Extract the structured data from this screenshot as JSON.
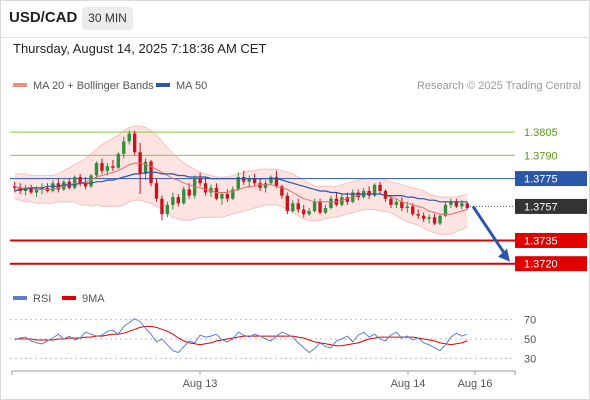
{
  "header": {
    "symbol": "USD/CAD",
    "timeframe": "30 MIN"
  },
  "datetime": "Thursday, August 14, 2025 7:18:36 AM CET",
  "legend": {
    "bollinger": {
      "label": "MA 20 + Bollinger Bands",
      "color": "#f28b82"
    },
    "ma50": {
      "label": "MA 50",
      "color": "#2b57a8"
    }
  },
  "credit": "Research © 2025 Trading Central",
  "rsi_legend": {
    "rsi": {
      "label": "RSI",
      "color": "#5b7fd0"
    },
    "ma": {
      "label": "9MA",
      "color": "#e00000"
    }
  },
  "colors": {
    "up": "#2f8f3a",
    "down": "#c8141e",
    "blue": "#2b57a8",
    "red": "#e00000",
    "green": "#8cc63f",
    "dark": "#333333"
  },
  "chart_data": {
    "type": "candlestick",
    "price_range": [
      1.3703,
      1.3829
    ],
    "levels": [
      {
        "value": "1.3805",
        "style": "green-line"
      },
      {
        "value": "1.3790",
        "style": "green-line"
      },
      {
        "value": "1.3775",
        "style": "blue-line"
      },
      {
        "value": "1.3757",
        "style": "last-price"
      },
      {
        "value": "1.3735",
        "style": "red-line"
      },
      {
        "value": "1.3720",
        "style": "red-line"
      }
    ],
    "projection": {
      "from": 1.3757,
      "to": 1.372
    },
    "x_labels": [
      "Aug 13",
      "Aug 14",
      "Aug 16"
    ],
    "candles": [
      [
        1.377,
        1.3773,
        1.3766,
        1.3769
      ],
      [
        1.3769,
        1.3772,
        1.3765,
        1.3767
      ],
      [
        1.3767,
        1.3771,
        1.3764,
        1.3769
      ],
      [
        1.3769,
        1.3771,
        1.3765,
        1.3766
      ],
      [
        1.3766,
        1.377,
        1.3763,
        1.3768
      ],
      [
        1.3768,
        1.3772,
        1.3765,
        1.3769
      ],
      [
        1.3769,
        1.3772,
        1.3766,
        1.3767
      ],
      [
        1.3767,
        1.3774,
        1.3766,
        1.3772
      ],
      [
        1.3772,
        1.3775,
        1.3766,
        1.3768
      ],
      [
        1.3768,
        1.3774,
        1.3767,
        1.3773
      ],
      [
        1.3773,
        1.3775,
        1.3768,
        1.3769
      ],
      [
        1.3769,
        1.3777,
        1.3768,
        1.3776
      ],
      [
        1.3776,
        1.3778,
        1.377,
        1.3772
      ],
      [
        1.3772,
        1.3776,
        1.3768,
        1.377
      ],
      [
        1.377,
        1.3778,
        1.3769,
        1.3777
      ],
      [
        1.3777,
        1.3786,
        1.3775,
        1.3785
      ],
      [
        1.3785,
        1.3788,
        1.3778,
        1.378
      ],
      [
        1.378,
        1.3785,
        1.3777,
        1.3783
      ],
      [
        1.3783,
        1.3787,
        1.378,
        1.3782
      ],
      [
        1.3782,
        1.3792,
        1.3781,
        1.3791
      ],
      [
        1.3791,
        1.3802,
        1.3788,
        1.3799
      ],
      [
        1.3799,
        1.3806,
        1.3797,
        1.3804
      ],
      [
        1.3804,
        1.3806,
        1.379,
        1.3792
      ],
      [
        1.3792,
        1.3798,
        1.3765,
        1.3778
      ],
      [
        1.3778,
        1.3788,
        1.3774,
        1.3786
      ],
      [
        1.3786,
        1.3787,
        1.377,
        1.3772
      ],
      [
        1.3772,
        1.3775,
        1.376,
        1.3762
      ],
      [
        1.3762,
        1.3764,
        1.3748,
        1.3752
      ],
      [
        1.3752,
        1.376,
        1.375,
        1.3758
      ],
      [
        1.3758,
        1.3766,
        1.3755,
        1.3763
      ],
      [
        1.3763,
        1.3765,
        1.3757,
        1.3759
      ],
      [
        1.3759,
        1.377,
        1.3758,
        1.3768
      ],
      [
        1.3768,
        1.3772,
        1.3762,
        1.3764
      ],
      [
        1.3764,
        1.3777,
        1.3762,
        1.3775
      ],
      [
        1.3775,
        1.3779,
        1.377,
        1.3772
      ],
      [
        1.3772,
        1.3776,
        1.3764,
        1.3766
      ],
      [
        1.3766,
        1.3771,
        1.3763,
        1.3769
      ],
      [
        1.3769,
        1.3772,
        1.3761,
        1.3762
      ],
      [
        1.3762,
        1.3766,
        1.3758,
        1.3765
      ],
      [
        1.3765,
        1.3768,
        1.376,
        1.3762
      ],
      [
        1.3762,
        1.377,
        1.3761,
        1.3768
      ],
      [
        1.3768,
        1.3779,
        1.3767,
        1.3776
      ],
      [
        1.3776,
        1.378,
        1.3771,
        1.3773
      ],
      [
        1.3773,
        1.3777,
        1.3769,
        1.3775
      ],
      [
        1.3775,
        1.3778,
        1.377,
        1.3772
      ],
      [
        1.3772,
        1.3775,
        1.3767,
        1.3769
      ],
      [
        1.3769,
        1.3774,
        1.3766,
        1.3772
      ],
      [
        1.3772,
        1.3777,
        1.3771,
        1.3776
      ],
      [
        1.3776,
        1.378,
        1.3769,
        1.377
      ],
      [
        1.377,
        1.3771,
        1.3762,
        1.3764
      ],
      [
        1.3764,
        1.3766,
        1.3752,
        1.3754
      ],
      [
        1.3754,
        1.3761,
        1.3753,
        1.3759
      ],
      [
        1.3759,
        1.3762,
        1.3753,
        1.3755
      ],
      [
        1.3755,
        1.3758,
        1.375,
        1.3752
      ],
      [
        1.3752,
        1.3756,
        1.3751,
        1.3754
      ],
      [
        1.3754,
        1.3762,
        1.3753,
        1.376
      ],
      [
        1.376,
        1.3762,
        1.3752,
        1.3753
      ],
      [
        1.3753,
        1.3758,
        1.3752,
        1.3756
      ],
      [
        1.3756,
        1.3764,
        1.3755,
        1.3762
      ],
      [
        1.3762,
        1.3766,
        1.3757,
        1.3758
      ],
      [
        1.3758,
        1.3765,
        1.3757,
        1.3763
      ],
      [
        1.3763,
        1.3766,
        1.3758,
        1.376
      ],
      [
        1.376,
        1.3768,
        1.3759,
        1.3766
      ],
      [
        1.3766,
        1.3768,
        1.3761,
        1.3763
      ],
      [
        1.3763,
        1.3769,
        1.3762,
        1.3767
      ],
      [
        1.3767,
        1.377,
        1.3762,
        1.3764
      ],
      [
        1.3764,
        1.3772,
        1.3763,
        1.3771
      ],
      [
        1.3771,
        1.3773,
        1.3765,
        1.3767
      ],
      [
        1.3767,
        1.3768,
        1.376,
        1.3762
      ],
      [
        1.3762,
        1.3764,
        1.3756,
        1.3758
      ],
      [
        1.3758,
        1.3762,
        1.3756,
        1.376
      ],
      [
        1.376,
        1.3763,
        1.3754,
        1.3756
      ],
      [
        1.3756,
        1.376,
        1.3753,
        1.3757
      ],
      [
        1.3757,
        1.3759,
        1.3751,
        1.3752
      ],
      [
        1.3752,
        1.3755,
        1.3749,
        1.3751
      ],
      [
        1.3751,
        1.3753,
        1.3747,
        1.3749
      ],
      [
        1.3749,
        1.3752,
        1.3746,
        1.375
      ],
      [
        1.375,
        1.3752,
        1.3745,
        1.3746
      ],
      [
        1.3746,
        1.3752,
        1.3745,
        1.3751
      ],
      [
        1.3751,
        1.376,
        1.375,
        1.3758
      ],
      [
        1.3758,
        1.3762,
        1.3756,
        1.376
      ],
      [
        1.376,
        1.3762,
        1.3756,
        1.3757
      ],
      [
        1.3757,
        1.3761,
        1.3755,
        1.3759
      ],
      [
        1.3759,
        1.376,
        1.3755,
        1.3756
      ]
    ],
    "ma50": [
      1.3767,
      1.3768,
      1.3768,
      1.3769,
      1.3769,
      1.3769,
      1.377,
      1.377,
      1.377,
      1.3771,
      1.3771,
      1.3771,
      1.3772,
      1.3772,
      1.3772,
      1.3773,
      1.3773,
      1.3774,
      1.3774,
      1.3775,
      1.3776,
      1.3777,
      1.3778,
      1.3778,
      1.3779,
      1.3779,
      1.3779,
      1.3778,
      1.3778,
      1.3778,
      1.3777,
      1.3777,
      1.3776,
      1.3776,
      1.3776,
      1.3776,
      1.3775,
      1.3775,
      1.3775,
      1.3775,
      1.3775,
      1.3775,
      1.3775,
      1.3775,
      1.3775,
      1.3775,
      1.3775,
      1.3775,
      1.3775,
      1.3774,
      1.3773,
      1.3772,
      1.3771,
      1.377,
      1.3769,
      1.3768,
      1.3767,
      1.3767,
      1.3766,
      1.3766,
      1.3765,
      1.3765,
      1.3765,
      1.3765,
      1.3765,
      1.3765,
      1.3765,
      1.3765,
      1.3764,
      1.3764,
      1.3764,
      1.3764,
      1.3763,
      1.3763,
      1.3762,
      1.3762,
      1.3761,
      1.3761,
      1.376,
      1.376,
      1.376,
      1.376,
      1.376,
      1.376
    ],
    "ma20": [
      1.377,
      1.3769,
      1.3769,
      1.3769,
      1.3768,
      1.3768,
      1.3768,
      1.3768,
      1.3769,
      1.377,
      1.3771,
      1.3772,
      1.3772,
      1.3773,
      1.3774,
      1.3776,
      1.3777,
      1.3778,
      1.3779,
      1.378,
      1.3782,
      1.3784,
      1.3785,
      1.3785,
      1.3784,
      1.3783,
      1.3781,
      1.3779,
      1.3777,
      1.3775,
      1.3774,
      1.3772,
      1.3771,
      1.377,
      1.3769,
      1.3768,
      1.3767,
      1.3766,
      1.3766,
      1.3766,
      1.3767,
      1.3768,
      1.3769,
      1.377,
      1.377,
      1.3771,
      1.3771,
      1.3771,
      1.377,
      1.3769,
      1.3768,
      1.3766,
      1.3764,
      1.3762,
      1.3761,
      1.376,
      1.376,
      1.376,
      1.376,
      1.376,
      1.3761,
      1.3762,
      1.3763,
      1.3764,
      1.3765,
      1.3765,
      1.3765,
      1.3765,
      1.3764,
      1.3763,
      1.3762,
      1.376,
      1.3759,
      1.3758,
      1.3757,
      1.3756,
      1.3754,
      1.3753,
      1.3752,
      1.3752,
      1.3752,
      1.3753,
      1.3754,
      1.3755
    ],
    "bb_upper": [
      1.3778,
      1.3778,
      1.3778,
      1.3777,
      1.3777,
      1.3777,
      1.3777,
      1.3777,
      1.3778,
      1.378,
      1.3782,
      1.3784,
      1.3786,
      1.3788,
      1.3791,
      1.3794,
      1.3797,
      1.3799,
      1.3801,
      1.3803,
      1.3806,
      1.3808,
      1.3809,
      1.3809,
      1.3808,
      1.3806,
      1.3803,
      1.3799,
      1.3795,
      1.3791,
      1.3788,
      1.3785,
      1.3783,
      1.3781,
      1.3779,
      1.3778,
      1.3777,
      1.3776,
      1.3776,
      1.3776,
      1.3777,
      1.3778,
      1.3779,
      1.378,
      1.378,
      1.3781,
      1.3781,
      1.3781,
      1.3781,
      1.378,
      1.3779,
      1.3778,
      1.3776,
      1.3774,
      1.3772,
      1.377,
      1.377,
      1.377,
      1.377,
      1.377,
      1.3771,
      1.3772,
      1.3773,
      1.3774,
      1.3775,
      1.3775,
      1.3775,
      1.3775,
      1.3774,
      1.3773,
      1.3772,
      1.3771,
      1.377,
      1.3769,
      1.3768,
      1.3767,
      1.3765,
      1.3764,
      1.3763,
      1.3763,
      1.3763,
      1.3763,
      1.3764,
      1.3765
    ],
    "bb_lower": [
      1.3762,
      1.3761,
      1.376,
      1.376,
      1.3759,
      1.3759,
      1.3759,
      1.3759,
      1.376,
      1.376,
      1.376,
      1.376,
      1.3758,
      1.3758,
      1.3757,
      1.3758,
      1.3757,
      1.3757,
      1.3757,
      1.3757,
      1.3758,
      1.376,
      1.3761,
      1.3761,
      1.376,
      1.3759,
      1.3757,
      1.3755,
      1.3752,
      1.375,
      1.3749,
      1.3748,
      1.3748,
      1.3749,
      1.375,
      1.375,
      1.375,
      1.375,
      1.375,
      1.3751,
      1.3752,
      1.3753,
      1.3754,
      1.3755,
      1.3756,
      1.3757,
      1.3758,
      1.3758,
      1.3758,
      1.3757,
      1.3755,
      1.3753,
      1.3751,
      1.3749,
      1.3748,
      1.3748,
      1.3748,
      1.3749,
      1.375,
      1.375,
      1.3751,
      1.3752,
      1.3753,
      1.3754,
      1.3755,
      1.3755,
      1.3755,
      1.3754,
      1.3754,
      1.3753,
      1.3751,
      1.3749,
      1.3747,
      1.3746,
      1.3745,
      1.3743,
      1.3741,
      1.374,
      1.3739,
      1.3739,
      1.3739,
      1.3741,
      1.3742,
      1.3744
    ],
    "rsi": {
      "range": [
        20,
        80
      ],
      "ticks": [
        "70",
        "50",
        "30"
      ],
      "rsi": [
        49,
        51,
        52,
        48,
        46,
        45,
        48,
        51,
        55,
        50,
        53,
        49,
        51,
        57,
        55,
        53,
        54,
        58,
        59,
        55,
        63,
        67,
        71,
        68,
        61,
        55,
        47,
        50,
        44,
        38,
        36,
        42,
        48,
        46,
        54,
        52,
        53,
        55,
        49,
        47,
        50,
        57,
        54,
        52,
        55,
        53,
        50,
        48,
        53,
        57,
        55,
        52,
        46,
        41,
        36,
        40,
        46,
        42,
        41,
        48,
        50,
        53,
        47,
        54,
        57,
        52,
        55,
        50,
        48,
        54,
        57,
        51,
        53,
        49,
        51,
        46,
        44,
        41,
        38,
        44,
        52,
        56,
        53,
        55
      ],
      "ma9": [
        50,
        50,
        50,
        50,
        49,
        49,
        49,
        49,
        50,
        50,
        51,
        51,
        51,
        52,
        52,
        53,
        53,
        54,
        55,
        55,
        56,
        58,
        60,
        62,
        63,
        63,
        62,
        60,
        58,
        55,
        51,
        48,
        46,
        45,
        44,
        45,
        46,
        48,
        49,
        50,
        51,
        52,
        53,
        53,
        53,
        53,
        53,
        53,
        53,
        53,
        53,
        53,
        52,
        51,
        49,
        47,
        46,
        45,
        44,
        43,
        43,
        44,
        45,
        46,
        48,
        50,
        51,
        52,
        52,
        52,
        52,
        52,
        52,
        52,
        51,
        50,
        49,
        48,
        46,
        45,
        44,
        45,
        46,
        48
      ]
    }
  }
}
